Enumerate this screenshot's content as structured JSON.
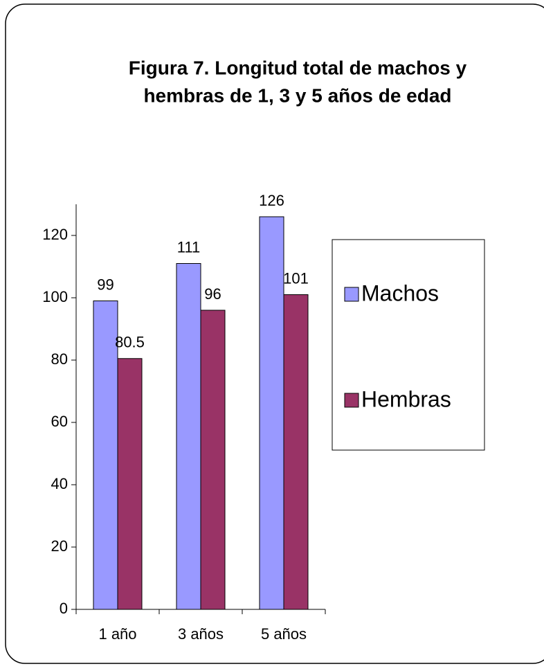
{
  "chart_data": {
    "type": "bar",
    "title": [
      "Figura 7. Longitud total de machos y",
      "hembras de 1, 3 y 5 años de edad"
    ],
    "categories": [
      "1 año",
      "3 años",
      "5 años"
    ],
    "series": [
      {
        "name": "Machos",
        "color": "#9999ff",
        "values": [
          99,
          111,
          126
        ]
      },
      {
        "name": "Hembras",
        "color": "#993366",
        "values": [
          80.5,
          96,
          101
        ]
      }
    ],
    "ylim": [
      0,
      130
    ],
    "yticks": [
      0,
      20,
      40,
      60,
      80,
      100,
      120
    ],
    "legend": "right"
  }
}
